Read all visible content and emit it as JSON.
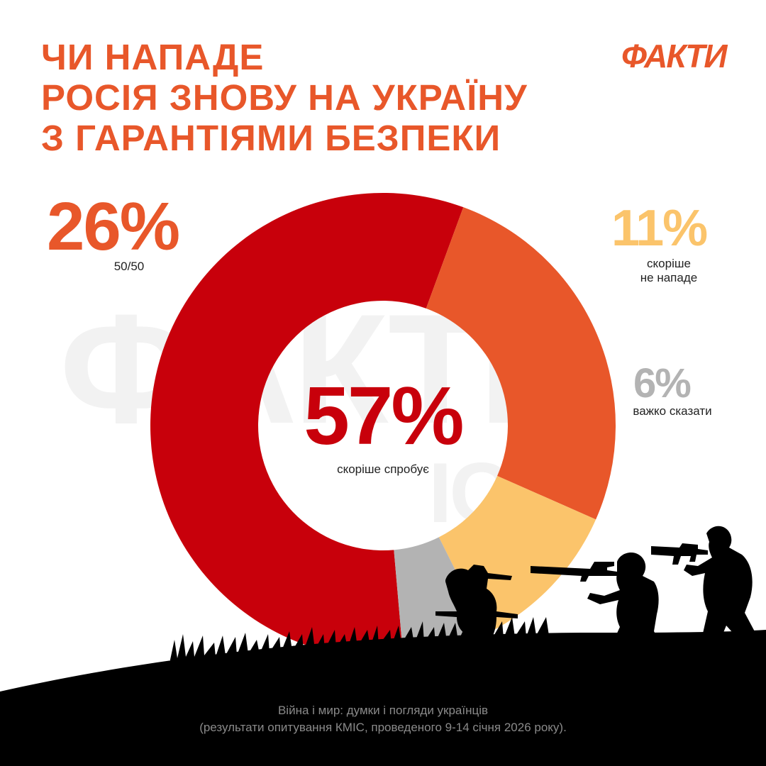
{
  "title_lines": [
    "ЧИ НАПАДЕ",
    "РОСІЯ ЗНОВУ НА УКРАЇНУ",
    "З ГАРАНТІЯМИ БЕЗПЕКИ"
  ],
  "logo": "ФАКТИ",
  "watermark": {
    "big": "ФАКТИ",
    "small": "ICTV"
  },
  "source": [
    "Війна і мир: думки і погляди українців",
    "(результати опитування КМІС, проведеного 9-14 січня 2026 року)."
  ],
  "chart_data": {
    "type": "pie",
    "title": "ЧИ НАПАДЕ РОСІЯ ЗНОВУ НА УКРАЇНУ З ГАРАНТІЯМИ БЕЗПЕКИ",
    "slices": [
      {
        "label": "скоріше спробує",
        "value": 57,
        "display": "57%",
        "color": "#c8000b"
      },
      {
        "label": "50/50",
        "value": 26,
        "display": "26%",
        "color": "#e8572a"
      },
      {
        "label": "скоріше не нападе",
        "value": 11,
        "display": "11%",
        "color": "#fbc46b"
      },
      {
        "label": "важко сказати",
        "value": 6,
        "display": "6%",
        "color": "#b3b3b3"
      }
    ]
  }
}
